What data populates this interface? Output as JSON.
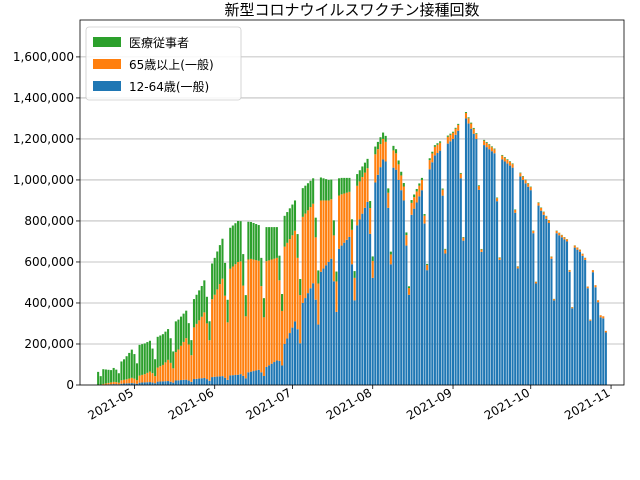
{
  "chart_data": {
    "type": "bar",
    "stacked": true,
    "title": "新型コロナウイルスワクチン接種回数",
    "xlabel": "",
    "ylabel": "",
    "ylim": [
      0,
      1780000
    ],
    "grid": "horizontal",
    "legend_position": "top-left",
    "y_ticks": [
      0,
      200000,
      400000,
      600000,
      800000,
      1000000,
      1200000,
      1400000,
      1600000
    ],
    "y_tick_labels": [
      "0",
      "200,000",
      "400,000",
      "600,000",
      "800,000",
      "1,000,000",
      "1,200,000",
      "1,400,000",
      "1,600,000"
    ],
    "x_ticks": [
      "2021-05-01",
      "2021-06-01",
      "2021-07-01",
      "2021-08-01",
      "2021-09-01",
      "2021-10-01",
      "2021-11-01"
    ],
    "x_tick_labels": [
      "2021-05",
      "2021-06",
      "2021-07",
      "2021-08",
      "2021-09",
      "2021-10",
      "2021-11"
    ],
    "x_range": [
      "2021-04-10",
      "2021-11-06"
    ],
    "series": [
      {
        "name": "12-64歳(一般)",
        "color": "#1f77b4",
        "points": [
          [
            "2021-04-17",
            0
          ],
          [
            "2021-05-01",
            10000
          ],
          [
            "2021-05-15",
            20000
          ],
          [
            "2021-05-25",
            30000
          ],
          [
            "2021-06-01",
            40000
          ],
          [
            "2021-06-10",
            50000
          ],
          [
            "2021-06-20",
            80000
          ],
          [
            "2021-06-25",
            120000
          ],
          [
            "2021-06-28",
            200000
          ],
          [
            "2021-07-01",
            280000
          ],
          [
            "2021-07-05",
            400000
          ],
          [
            "2021-07-10",
            520000
          ],
          [
            "2021-07-15",
            600000
          ],
          [
            "2021-07-20",
            680000
          ],
          [
            "2021-07-25",
            750000
          ],
          [
            "2021-08-01",
            950000
          ],
          [
            "2021-08-05",
            1100000
          ],
          [
            "2021-08-10",
            1050000
          ],
          [
            "2021-08-15",
            800000
          ],
          [
            "2021-08-20",
            950000
          ],
          [
            "2021-08-25",
            1120000
          ],
          [
            "2021-09-01",
            1200000
          ],
          [
            "2021-09-06",
            1300000
          ],
          [
            "2021-09-10",
            1200000
          ],
          [
            "2021-09-15",
            1150000
          ],
          [
            "2021-09-20",
            1100000
          ],
          [
            "2021-09-25",
            1050000
          ],
          [
            "2021-10-01",
            950000
          ],
          [
            "2021-10-05",
            850000
          ],
          [
            "2021-10-10",
            750000
          ],
          [
            "2021-10-15",
            700000
          ],
          [
            "2021-10-20",
            650000
          ],
          [
            "2021-10-25",
            550000
          ],
          [
            "2021-10-28",
            330000
          ],
          [
            "2021-10-30",
            320000
          ]
        ]
      },
      {
        "name": "65歳以上(一般)",
        "color": "#ff7f0e",
        "points": [
          [
            "2021-04-17",
            0
          ],
          [
            "2021-04-28",
            20000
          ],
          [
            "2021-05-05",
            40000
          ],
          [
            "2021-05-12",
            80000
          ],
          [
            "2021-05-18",
            150000
          ],
          [
            "2021-05-22",
            220000
          ],
          [
            "2021-05-27",
            300000
          ],
          [
            "2021-06-01",
            400000
          ],
          [
            "2021-06-05",
            500000
          ],
          [
            "2021-06-10",
            550000
          ],
          [
            "2021-06-15",
            550000
          ],
          [
            "2021-06-20",
            520000
          ],
          [
            "2021-06-25",
            500000
          ],
          [
            "2021-07-01",
            450000
          ],
          [
            "2021-07-05",
            420000
          ],
          [
            "2021-07-10",
            380000
          ],
          [
            "2021-07-15",
            300000
          ],
          [
            "2021-07-20",
            250000
          ],
          [
            "2021-07-25",
            200000
          ],
          [
            "2021-08-01",
            150000
          ],
          [
            "2021-08-05",
            100000
          ],
          [
            "2021-08-10",
            80000
          ],
          [
            "2021-08-15",
            60000
          ],
          [
            "2021-08-20",
            50000
          ],
          [
            "2021-09-01",
            30000
          ],
          [
            "2021-09-15",
            20000
          ],
          [
            "2021-10-01",
            15000
          ],
          [
            "2021-10-15",
            10000
          ],
          [
            "2021-10-30",
            10000
          ]
        ]
      },
      {
        "name": "医療従事者",
        "color": "#2ca02c",
        "points": [
          [
            "2021-04-17",
            80000
          ],
          [
            "2021-04-22",
            60000
          ],
          [
            "2021-04-27",
            100000
          ],
          [
            "2021-05-01",
            150000
          ],
          [
            "2021-05-07",
            150000
          ],
          [
            "2021-05-12",
            150000
          ],
          [
            "2021-05-17",
            150000
          ],
          [
            "2021-05-22",
            130000
          ],
          [
            "2021-05-27",
            150000
          ],
          [
            "2021-06-01",
            180000
          ],
          [
            "2021-06-05",
            200000
          ],
          [
            "2021-06-10",
            200000
          ],
          [
            "2021-06-15",
            180000
          ],
          [
            "2021-06-20",
            170000
          ],
          [
            "2021-06-25",
            150000
          ],
          [
            "2021-07-01",
            150000
          ],
          [
            "2021-07-05",
            140000
          ],
          [
            "2021-07-10",
            120000
          ],
          [
            "2021-07-15",
            100000
          ],
          [
            "2021-07-20",
            80000
          ],
          [
            "2021-07-25",
            60000
          ],
          [
            "2021-08-01",
            40000
          ],
          [
            "2021-08-10",
            20000
          ],
          [
            "2021-08-20",
            10000
          ],
          [
            "2021-09-01",
            5000
          ],
          [
            "2021-10-30",
            0
          ]
        ]
      }
    ]
  }
}
